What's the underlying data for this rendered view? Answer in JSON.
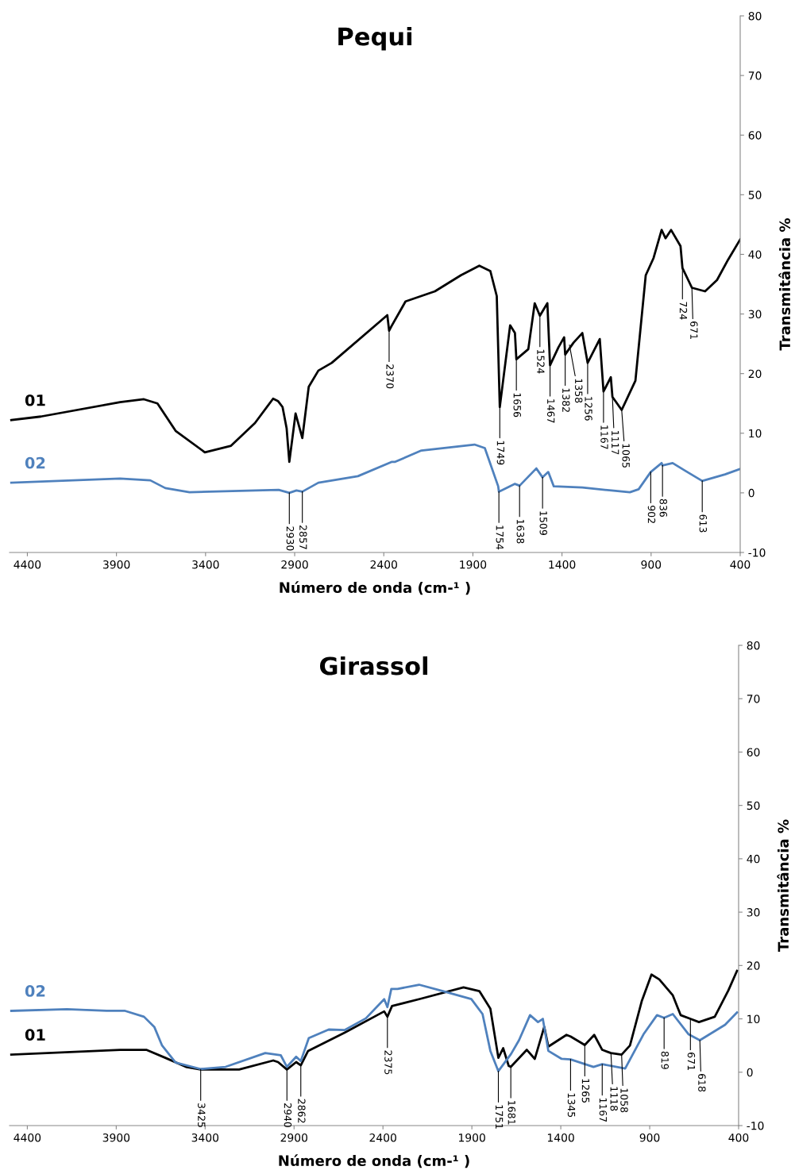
{
  "chart_data": [
    {
      "type": "line",
      "title": "Pequi",
      "xlabel": "Número de onda (cm-¹ )",
      "ylabel": "Transmitância %",
      "xlim": [
        4500,
        400
      ],
      "xticks": [
        4400,
        3900,
        3400,
        2900,
        2400,
        1900,
        1400,
        900,
        400
      ],
      "ylim": [
        -10,
        80
      ],
      "yticks": [
        -10,
        0,
        10,
        20,
        30,
        40,
        50,
        60,
        70,
        80
      ],
      "grid": false,
      "legend": false,
      "marker": "none",
      "line_style": "solid",
      "series": [
        {
          "name": "01",
          "color": "#000000",
          "x": [
            4490,
            4324,
            3880,
            3746,
            3670,
            3568,
            3404,
            3257,
            3123,
            3021,
            2994,
            2968,
            2945,
            2930,
            2895,
            2857,
            2821,
            2767,
            2692,
            2380,
            2370,
            2356,
            2278,
            2113,
            1967,
            1864,
            1802,
            1766,
            1749,
            1691,
            1664,
            1656,
            1589,
            1553,
            1524,
            1482,
            1467,
            1420,
            1388,
            1382,
            1335,
            1286,
            1256,
            1188,
            1167,
            1126,
            1117,
            1065,
            988,
            930,
            886,
            841,
            819,
            788,
            735,
            724,
            671,
            597,
            530,
            468,
            400
          ],
          "values": [
            12.2,
            12.8,
            15.2,
            15.7,
            15.0,
            10.4,
            6.8,
            7.9,
            11.7,
            15.8,
            15.4,
            14.4,
            10.8,
            5.2,
            13.3,
            9.2,
            17.8,
            20.5,
            21.8,
            29.8,
            27.2,
            28.0,
            32.1,
            33.8,
            36.5,
            38.1,
            37.2,
            33.0,
            14.4,
            28.1,
            26.8,
            22.4,
            24.1,
            31.8,
            29.7,
            31.8,
            21.4,
            24.4,
            26.1,
            23.2,
            25.2,
            26.8,
            21.8,
            25.8,
            17.0,
            19.4,
            16.1,
            13.9,
            18.8,
            36.5,
            39.4,
            44.1,
            42.7,
            44.1,
            41.4,
            37.7,
            34.4,
            33.8,
            35.7,
            39.1,
            42.5
          ]
        },
        {
          "name": "02",
          "color": "#4f81bd",
          "x": [
            4490,
            3880,
            3710,
            3626,
            3490,
            2990,
            2930,
            2890,
            2857,
            2767,
            2545,
            2354,
            2336,
            2189,
            1891,
            1833,
            1758,
            1754,
            1664,
            1638,
            1544,
            1509,
            1477,
            1446,
            1286,
            1122,
            1019,
            970,
            902,
            841,
            836,
            779,
            708,
            641,
            613,
            485,
            400
          ],
          "values": [
            1.7,
            2.4,
            2.1,
            0.8,
            0.1,
            0.5,
            0.0,
            0.4,
            0.2,
            1.7,
            2.8,
            5.2,
            5.2,
            7.1,
            8.1,
            7.5,
            1.1,
            0.2,
            1.5,
            1.2,
            4.1,
            2.6,
            3.5,
            1.1,
            0.9,
            0.4,
            0.1,
            0.6,
            3.5,
            5.0,
            4.6,
            5.0,
            3.7,
            2.5,
            2.0,
            3.1,
            4.0
          ]
        }
      ],
      "annotations": [
        {
          "text": "2930",
          "x": 2930,
          "y": 0.0
        },
        {
          "text": "2857",
          "x": 2857,
          "y": 0.2
        },
        {
          "text": "2370",
          "x": 2370,
          "y": 27.2
        },
        {
          "text": "1749",
          "x": 1749,
          "y": 14.4
        },
        {
          "text": "1656",
          "x": 1656,
          "y": 22.4
        },
        {
          "text": "1524",
          "x": 1524,
          "y": 29.7
        },
        {
          "text": "1467",
          "x": 1467,
          "y": 21.4
        },
        {
          "text": "1382",
          "x": 1382,
          "y": 23.2
        },
        {
          "text": "1358",
          "x": 1358,
          "y": 24.8
        },
        {
          "text": "1256",
          "x": 1256,
          "y": 21.8
        },
        {
          "text": "1167",
          "x": 1167,
          "y": 17.0
        },
        {
          "text": "1117",
          "x": 1117,
          "y": 16.1
        },
        {
          "text": "1065",
          "x": 1065,
          "y": 13.9
        },
        {
          "text": "724",
          "x": 724,
          "y": 37.7
        },
        {
          "text": "671",
          "x": 671,
          "y": 34.4
        },
        {
          "text": "1754",
          "x": 1754,
          "y": 0.2
        },
        {
          "text": "1638",
          "x": 1638,
          "y": 1.2
        },
        {
          "text": "1509",
          "x": 1509,
          "y": 2.6
        },
        {
          "text": "902",
          "x": 902,
          "y": 3.5
        },
        {
          "text": "836",
          "x": 836,
          "y": 4.6
        },
        {
          "text": "613",
          "x": 613,
          "y": 2.0
        }
      ]
    },
    {
      "type": "line",
      "title": "Girassol",
      "xlabel": "Número de onda (cm-¹ )",
      "ylabel": "Transmitância %",
      "xlim": [
        4500,
        400
      ],
      "xticks": [
        4400,
        3900,
        3400,
        2900,
        2400,
        1900,
        1400,
        900,
        400
      ],
      "ylim": [
        -10,
        80
      ],
      "yticks": [
        -10,
        0,
        10,
        20,
        30,
        40,
        50,
        60,
        70,
        80
      ],
      "grid": false,
      "legend": false,
      "marker": "none",
      "line_style": "solid",
      "series": [
        {
          "name": "01",
          "color": "#000000",
          "x": [
            4490,
            3878,
            3731,
            3624,
            3508,
            3425,
            3209,
            3017,
            2990,
            2940,
            2888,
            2862,
            2821,
            2616,
            2393,
            2375,
            2349,
            2184,
            1947,
            1858,
            1796,
            1751,
            1724,
            1693,
            1681,
            1591,
            1546,
            1493,
            1470,
            1368,
            1345,
            1265,
            1212,
            1167,
            1118,
            1058,
            1011,
            944,
            890,
            846,
            770,
            726,
            671,
            623,
            534,
            458,
            409
          ],
          "values": [
            3.3,
            4.2,
            4.2,
            2.7,
            1.0,
            0.5,
            0.5,
            2.2,
            1.9,
            0.5,
            1.9,
            1.3,
            4.0,
            7.4,
            11.4,
            10.4,
            12.4,
            13.8,
            15.9,
            15.2,
            11.9,
            2.7,
            4.5,
            1.2,
            1.0,
            4.2,
            2.5,
            8.5,
            4.8,
            7.0,
            6.7,
            5.1,
            7.0,
            4.2,
            3.6,
            3.3,
            5.0,
            13.4,
            18.3,
            17.4,
            14.4,
            10.7,
            10.0,
            9.4,
            10.4,
            15.3,
            19.0
          ]
        },
        {
          "name": "02",
          "color": "#4f81bd",
          "x": [
            4490,
            4177,
            3954,
            3850,
            3744,
            3686,
            3642,
            3566,
            3425,
            3285,
            3062,
            2975,
            2940,
            2888,
            2862,
            2817,
            2705,
            2616,
            2496,
            2393,
            2375,
            2353,
            2318,
            2197,
            2063,
            1903,
            1840,
            1796,
            1751,
            1680,
            1635,
            1573,
            1528,
            1501,
            1470,
            1395,
            1345,
            1216,
            1167,
            1038,
            935,
            859,
            819,
            770,
            681,
            618,
            476,
            409
          ],
          "values": [
            11.5,
            11.8,
            11.5,
            11.5,
            10.4,
            8.5,
            5.0,
            1.8,
            0.6,
            1.0,
            3.6,
            3.2,
            1.0,
            2.9,
            2.1,
            6.4,
            8.0,
            7.9,
            10.1,
            13.7,
            12.2,
            15.6,
            15.6,
            16.4,
            15.2,
            13.7,
            10.9,
            4.0,
            0.2,
            3.4,
            6.0,
            10.7,
            9.4,
            10.0,
            4.0,
            2.5,
            2.4,
            1.0,
            1.5,
            0.7,
            7.1,
            10.7,
            10.2,
            10.9,
            7.1,
            6.0,
            8.9,
            11.2
          ]
        }
      ],
      "annotations": [
        {
          "text": "3425",
          "x": 3425,
          "y": 0.5
        },
        {
          "text": "2940",
          "x": 2940,
          "y": 0.5
        },
        {
          "text": "2862",
          "x": 2862,
          "y": 1.3
        },
        {
          "text": "2375",
          "x": 2375,
          "y": 10.4
        },
        {
          "text": "1751",
          "x": 1751,
          "y": 0.2
        },
        {
          "text": "1681",
          "x": 1681,
          "y": 1.0
        },
        {
          "text": "1345",
          "x": 1345,
          "y": 2.4
        },
        {
          "text": "1265",
          "x": 1265,
          "y": 5.1
        },
        {
          "text": "1167",
          "x": 1167,
          "y": 1.5
        },
        {
          "text": "1118",
          "x": 1118,
          "y": 3.6
        },
        {
          "text": "1058",
          "x": 1058,
          "y": 3.3
        },
        {
          "text": "819",
          "x": 819,
          "y": 10.2
        },
        {
          "text": "671",
          "x": 671,
          "y": 10.0
        },
        {
          "text": "618",
          "x": 618,
          "y": 6.0
        }
      ]
    }
  ]
}
